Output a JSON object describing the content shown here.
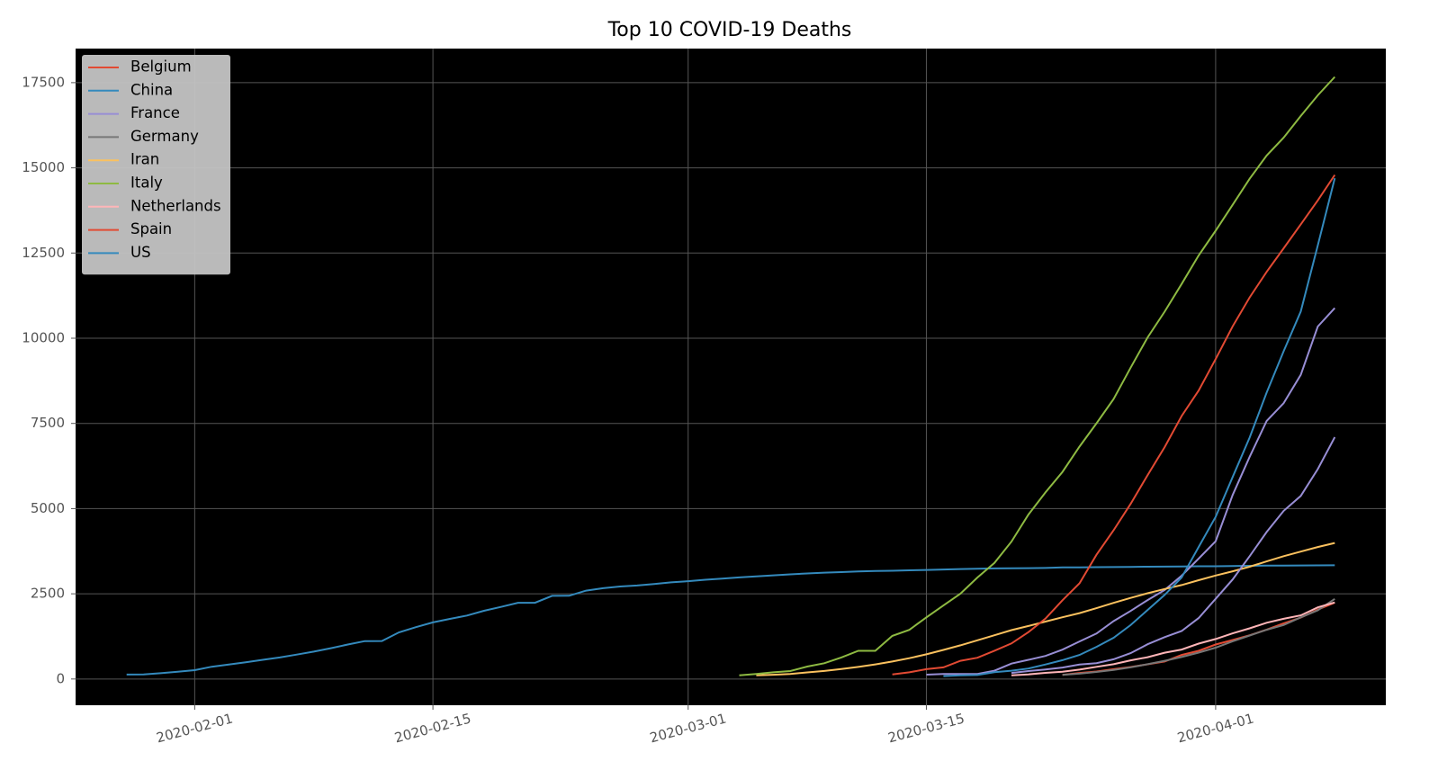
{
  "chart_data": {
    "type": "line",
    "title": "Top 10 COVID-19 Deaths",
    "x": [
      "2020-01-28",
      "2020-01-29",
      "2020-01-30",
      "2020-01-31",
      "2020-02-01",
      "2020-02-02",
      "2020-02-03",
      "2020-02-04",
      "2020-02-05",
      "2020-02-06",
      "2020-02-07",
      "2020-02-08",
      "2020-02-09",
      "2020-02-10",
      "2020-02-11",
      "2020-02-12",
      "2020-02-13",
      "2020-02-14",
      "2020-02-15",
      "2020-02-16",
      "2020-02-17",
      "2020-02-18",
      "2020-02-19",
      "2020-02-20",
      "2020-02-21",
      "2020-02-22",
      "2020-02-23",
      "2020-02-24",
      "2020-02-25",
      "2020-02-26",
      "2020-02-27",
      "2020-02-28",
      "2020-02-29",
      "2020-03-01",
      "2020-03-02",
      "2020-03-03",
      "2020-03-04",
      "2020-03-05",
      "2020-03-06",
      "2020-03-07",
      "2020-03-08",
      "2020-03-09",
      "2020-03-10",
      "2020-03-11",
      "2020-03-12",
      "2020-03-13",
      "2020-03-14",
      "2020-03-15",
      "2020-03-16",
      "2020-03-17",
      "2020-03-18",
      "2020-03-19",
      "2020-03-20",
      "2020-03-21",
      "2020-03-22",
      "2020-03-23",
      "2020-03-24",
      "2020-03-25",
      "2020-03-26",
      "2020-03-27",
      "2020-03-28",
      "2020-03-29",
      "2020-03-30",
      "2020-03-31",
      "2020-04-01",
      "2020-04-02",
      "2020-04-03",
      "2020-04-04",
      "2020-04-05",
      "2020-04-06",
      "2020-04-07",
      "2020-04-08"
    ],
    "series": [
      {
        "name": "Belgium",
        "color": "#E24A33",
        "values": [
          null,
          null,
          null,
          null,
          null,
          null,
          null,
          null,
          null,
          null,
          null,
          null,
          null,
          null,
          null,
          null,
          null,
          null,
          null,
          null,
          null,
          null,
          null,
          null,
          null,
          null,
          null,
          null,
          null,
          null,
          null,
          null,
          null,
          null,
          null,
          null,
          null,
          null,
          null,
          null,
          null,
          null,
          null,
          null,
          null,
          null,
          null,
          null,
          null,
          null,
          null,
          null,
          null,
          null,
          null,
          122,
          178,
          220,
          289,
          353,
          431,
          513,
          705,
          828,
          1011,
          1143,
          1283,
          1447,
          1632,
          1800,
          2035,
          2240
        ]
      },
      {
        "name": "China",
        "color": "#348ABD",
        "values": [
          131,
          133,
          171,
          213,
          259,
          361,
          425,
          490,
          562,
          632,
          717,
          804,
          904,
          1011,
          1111,
          1116,
          1368,
          1520,
          1662,
          1765,
          1863,
          2002,
          2114,
          2236,
          2236,
          2441,
          2443,
          2593,
          2663,
          2715,
          2744,
          2788,
          2835,
          2870,
          2912,
          2945,
          2981,
          3013,
          3042,
          3070,
          3097,
          3120,
          3136,
          3158,
          3169,
          3176,
          3189,
          3199,
          3213,
          3226,
          3237,
          3245,
          3249,
          3253,
          3259,
          3274,
          3274,
          3281,
          3285,
          3291,
          3296,
          3299,
          3304,
          3308,
          3309,
          3316,
          3322,
          3326,
          3330,
          3333,
          3335,
          3337
        ]
      },
      {
        "name": "France",
        "color": "#988ED5",
        "values": [
          null,
          null,
          null,
          null,
          null,
          null,
          null,
          null,
          null,
          null,
          null,
          null,
          null,
          null,
          null,
          null,
          null,
          null,
          null,
          null,
          null,
          null,
          null,
          null,
          null,
          null,
          null,
          null,
          null,
          null,
          null,
          null,
          null,
          null,
          null,
          null,
          null,
          null,
          null,
          null,
          null,
          null,
          null,
          null,
          null,
          null,
          null,
          127,
          149,
          149,
          149,
          244,
          451,
          563,
          676,
          862,
          1102,
          1333,
          1698,
          1997,
          2317,
          2611,
          3030,
          3532,
          4043,
          5398,
          6520,
          7574,
          8093,
          8926,
          10343,
          10887
        ]
      },
      {
        "name": "Germany",
        "color": "#777777",
        "values": [
          null,
          null,
          null,
          null,
          null,
          null,
          null,
          null,
          null,
          null,
          null,
          null,
          null,
          null,
          null,
          null,
          null,
          null,
          null,
          null,
          null,
          null,
          null,
          null,
          null,
          null,
          null,
          null,
          null,
          null,
          null,
          null,
          null,
          null,
          null,
          null,
          null,
          null,
          null,
          null,
          null,
          null,
          null,
          null,
          null,
          null,
          null,
          null,
          null,
          null,
          null,
          null,
          null,
          null,
          null,
          123,
          157,
          206,
          267,
          342,
          433,
          533,
          645,
          775,
          920,
          1107,
          1275,
          1444,
          1584,
          1810,
          2016,
          2349
        ]
      },
      {
        "name": "Iran",
        "color": "#FBC15E",
        "values": [
          null,
          null,
          null,
          null,
          null,
          null,
          null,
          null,
          null,
          null,
          null,
          null,
          null,
          null,
          null,
          null,
          null,
          null,
          null,
          null,
          null,
          null,
          null,
          null,
          null,
          null,
          null,
          null,
          null,
          null,
          null,
          null,
          null,
          null,
          null,
          null,
          null,
          107,
          124,
          145,
          194,
          237,
          291,
          354,
          429,
          514,
          611,
          724,
          853,
          988,
          1135,
          1284,
          1433,
          1556,
          1685,
          1812,
          1934,
          2077,
          2234,
          2378,
          2517,
          2640,
          2757,
          2898,
          3036,
          3160,
          3294,
          3452,
          3603,
          3739,
          3872,
          3993
        ]
      },
      {
        "name": "Italy",
        "color": "#8EBA42",
        "values": [
          null,
          null,
          null,
          null,
          null,
          null,
          null,
          null,
          null,
          null,
          null,
          null,
          null,
          null,
          null,
          null,
          null,
          null,
          null,
          null,
          null,
          null,
          null,
          null,
          null,
          null,
          null,
          null,
          null,
          null,
          null,
          null,
          null,
          null,
          null,
          null,
          107,
          148,
          197,
          233,
          366,
          463,
          631,
          827,
          827,
          1266,
          1441,
          1809,
          2158,
          2503,
          2978,
          3405,
          4032,
          4825,
          5476,
          6077,
          6820,
          7503,
          8215,
          9134,
          10023,
          10779,
          11591,
          12428,
          13155,
          13915,
          14681,
          15362,
          15887,
          16523,
          17127,
          17669
        ]
      },
      {
        "name": "Netherlands",
        "color": "#FFB5B8",
        "values": [
          null,
          null,
          null,
          null,
          null,
          null,
          null,
          null,
          null,
          null,
          null,
          null,
          null,
          null,
          null,
          null,
          null,
          null,
          null,
          null,
          null,
          null,
          null,
          null,
          null,
          null,
          null,
          null,
          null,
          null,
          null,
          null,
          null,
          null,
          null,
          null,
          null,
          null,
          null,
          null,
          null,
          null,
          null,
          null,
          null,
          null,
          null,
          null,
          null,
          null,
          null,
          null,
          106,
          136,
          179,
          213,
          276,
          356,
          434,
          546,
          639,
          771,
          864,
          1039,
          1173,
          1339,
          1487,
          1651,
          1766,
          1867,
          2101,
          2248
        ]
      },
      {
        "name": "Spain",
        "color": "#E24A33",
        "values": [
          null,
          null,
          null,
          null,
          null,
          null,
          null,
          null,
          null,
          null,
          null,
          null,
          null,
          null,
          null,
          null,
          null,
          null,
          null,
          null,
          null,
          null,
          null,
          null,
          null,
          null,
          null,
          null,
          null,
          null,
          null,
          null,
          null,
          null,
          null,
          null,
          null,
          null,
          null,
          null,
          null,
          null,
          null,
          null,
          null,
          133,
          195,
          289,
          342,
          533,
          623,
          830,
          1043,
          1375,
          1772,
          2311,
          2808,
          3647,
          4365,
          5138,
          5982,
          6803,
          7716,
          8464,
          9387,
          10348,
          11198,
          11947,
          12641,
          13341,
          14045,
          14792
        ]
      },
      {
        "name": "US",
        "color": "#348ABD",
        "values": [
          null,
          null,
          null,
          null,
          null,
          null,
          null,
          null,
          null,
          null,
          null,
          null,
          null,
          null,
          null,
          null,
          null,
          null,
          null,
          null,
          null,
          null,
          null,
          null,
          null,
          null,
          null,
          null,
          null,
          null,
          null,
          null,
          null,
          null,
          null,
          null,
          null,
          null,
          null,
          null,
          null,
          null,
          null,
          null,
          null,
          null,
          null,
          null,
          85,
          108,
          118,
          200,
          244,
          307,
          427,
          552,
          706,
          942,
          1209,
          1581,
          2026,
          2467,
          2978,
          3873,
          4757,
          5926,
          7087,
          8407,
          9619,
          10783,
          12722,
          14695
        ]
      },
      {
        "color": "#988ED5",
        "values": [
          null,
          null,
          null,
          null,
          null,
          null,
          null,
          null,
          null,
          null,
          null,
          null,
          null,
          null,
          null,
          null,
          null,
          null,
          null,
          null,
          null,
          null,
          null,
          null,
          null,
          null,
          null,
          null,
          null,
          null,
          null,
          null,
          null,
          null,
          null,
          null,
          null,
          null,
          null,
          null,
          null,
          null,
          null,
          null,
          null,
          null,
          null,
          null,
          null,
          null,
          null,
          null,
          177,
          233,
          281,
          335,
          422,
          465,
          578,
          759,
          1019,
          1228,
          1408,
          1789,
          2352,
          2921,
          3605,
          4313,
          4934,
          5373,
          6159,
          7097
        ]
      }
    ],
    "xlim": [
      "2020-01-25",
      "2020-04-11"
    ],
    "xticks": [
      "2020-02-01",
      "2020-02-15",
      "2020-03-01",
      "2020-03-15",
      "2020-04-01"
    ],
    "ylim": [
      -770,
      18500
    ],
    "yticks": [
      0,
      2500,
      5000,
      7500,
      10000,
      12500,
      15000,
      17500
    ],
    "grid": true,
    "legend": "upper left"
  }
}
